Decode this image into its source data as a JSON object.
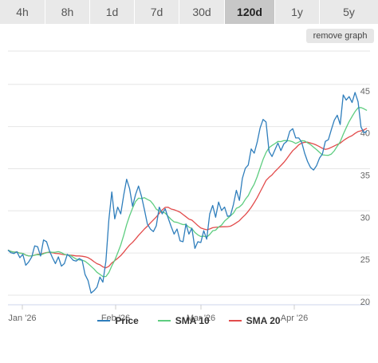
{
  "tabs": [
    {
      "label": "4h",
      "active": false
    },
    {
      "label": "8h",
      "active": false
    },
    {
      "label": "1d",
      "active": false
    },
    {
      "label": "7d",
      "active": false
    },
    {
      "label": "30d",
      "active": false
    },
    {
      "label": "120d",
      "active": true
    },
    {
      "label": "1y",
      "active": false
    },
    {
      "label": "5y",
      "active": false
    }
  ],
  "remove_graph_label": "remove graph",
  "chart_data": {
    "type": "line",
    "x_tick_labels": [
      "Jan '26",
      "Feb '26",
      "Mar '26",
      "Apr '26"
    ],
    "y_tick_labels": [
      "20",
      "25",
      "30",
      "35",
      "40",
      "45"
    ],
    "ylim": [
      20,
      47
    ],
    "grid": "horizontal",
    "legend_position": "bottom",
    "series": [
      {
        "name": "Price",
        "color": "#2f7ebc",
        "values": [
          26.1,
          25.8,
          25.7,
          25.9,
          25.2,
          25.6,
          24.3,
          24.7,
          25.3,
          26.6,
          26.5,
          25.4,
          27.3,
          27.1,
          26.0,
          25.2,
          24.5,
          25.3,
          24.2,
          24.5,
          25.6,
          25.3,
          24.9,
          24.8,
          25.1,
          24.9,
          23.2,
          22.5,
          21.0,
          21.3,
          21.7,
          22.9,
          22.3,
          24.8,
          29.7,
          33.0,
          29.8,
          31.2,
          30.4,
          32.6,
          34.5,
          33.4,
          31.3,
          32.7,
          33.7,
          32.5,
          30.9,
          29.2,
          28.6,
          28.3,
          29.0,
          31.2,
          30.4,
          31.0,
          29.9,
          28.9,
          28.0,
          28.6,
          27.2,
          27.1,
          29.2,
          28.0,
          28.7,
          26.3,
          27.1,
          27.0,
          28.4,
          27.4,
          30.4,
          31.4,
          30.0,
          31.8,
          30.8,
          31.2,
          30.1,
          30.2,
          31.5,
          33.2,
          32.0,
          34.6,
          35.8,
          36.2,
          38.1,
          37.6,
          38.9,
          40.6,
          41.6,
          41.3,
          37.8,
          37.2,
          38.0,
          38.8,
          37.9,
          38.7,
          39.0,
          40.2,
          40.5,
          39.4,
          39.4,
          38.9,
          37.6,
          36.6,
          35.9,
          35.6,
          36.1,
          37.0,
          37.5,
          39.0,
          39.2,
          40.4,
          41.5,
          42.1,
          41.0,
          44.5,
          43.9,
          44.3,
          43.6,
          44.8,
          43.7,
          40.7,
          40.0,
          40.2
        ]
      },
      {
        "name": "SMA 10",
        "color": "#5ecd80"
      },
      {
        "name": "SMA 20",
        "color": "#e24b4b"
      }
    ]
  }
}
